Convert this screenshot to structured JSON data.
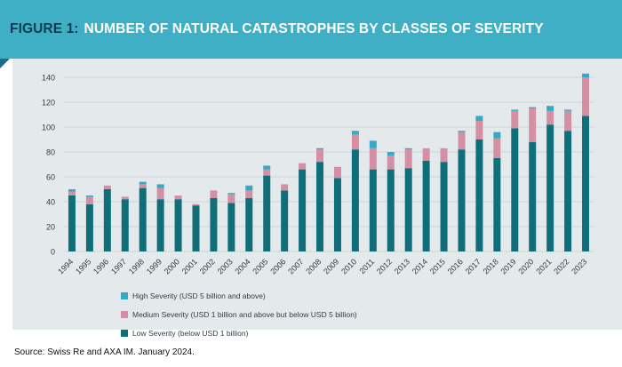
{
  "figure": {
    "label": "FIGURE 1:",
    "title": "NUMBER OF NATURAL CATASTROPHES BY CLASSES OF SEVERITY"
  },
  "colors": {
    "banner": "#3fafc6",
    "label_navy": "#0b3a57",
    "panel": "#e4eaec",
    "low": "#0f6e78",
    "medium": "#d48fa5",
    "high": "#36a9c4"
  },
  "chart_data": {
    "type": "bar",
    "stacked": true,
    "categories": [
      "1994",
      "1995",
      "1996",
      "1997",
      "1998",
      "1999",
      "2000",
      "2001",
      "2002",
      "2003",
      "2004",
      "2005",
      "2006",
      "2007",
      "2008",
      "2009",
      "2010",
      "2011",
      "2012",
      "2013",
      "2014",
      "2015",
      "2016",
      "2017",
      "2018",
      "2019",
      "2020",
      "2021",
      "2022",
      "2023"
    ],
    "series": [
      {
        "name": "Low Severity (below USD 1 billion)",
        "key": "low",
        "values": [
          45,
          38,
          50,
          42,
          51,
          42,
          42,
          37,
          43,
          39,
          43,
          61,
          49,
          66,
          72,
          59,
          82,
          66,
          66,
          67,
          73,
          72,
          82,
          90,
          75,
          99,
          88,
          102,
          97,
          109
        ]
      },
      {
        "name": "Medium Severity (USD 1 billion and above but below USD 5 billion)",
        "key": "medium",
        "values": [
          3,
          6,
          3,
          2,
          3,
          9,
          3,
          1,
          6,
          7,
          6,
          5,
          5,
          5,
          10,
          9,
          12,
          17,
          11,
          15,
          10,
          11,
          14,
          15,
          16,
          14,
          27,
          11,
          16,
          31
        ]
      },
      {
        "name": "High Severity (USD 5 billion and above)",
        "key": "high",
        "values": [
          2,
          1,
          0,
          0,
          2,
          3,
          0,
          0,
          0,
          1,
          4,
          3,
          0,
          0,
          1,
          0,
          3,
          6,
          3,
          1,
          0,
          0,
          1,
          4,
          5,
          1,
          1,
          4,
          1,
          3
        ]
      }
    ],
    "yticks": [
      0,
      20,
      40,
      60,
      80,
      100,
      120,
      140
    ],
    "ylim": [
      0,
      145
    ],
    "grid": true,
    "legend_position": "bottom-left"
  },
  "legend_order": [
    "high",
    "medium",
    "low"
  ],
  "legend": {
    "high": "High Severity (USD 5 billion and above)",
    "medium": "Medium Severity (USD 1 billion and above but below USD 5 billion)",
    "low": "Low Severity (below USD 1 billion)"
  },
  "source": "Source: Swiss Re and AXA IM. January 2024."
}
